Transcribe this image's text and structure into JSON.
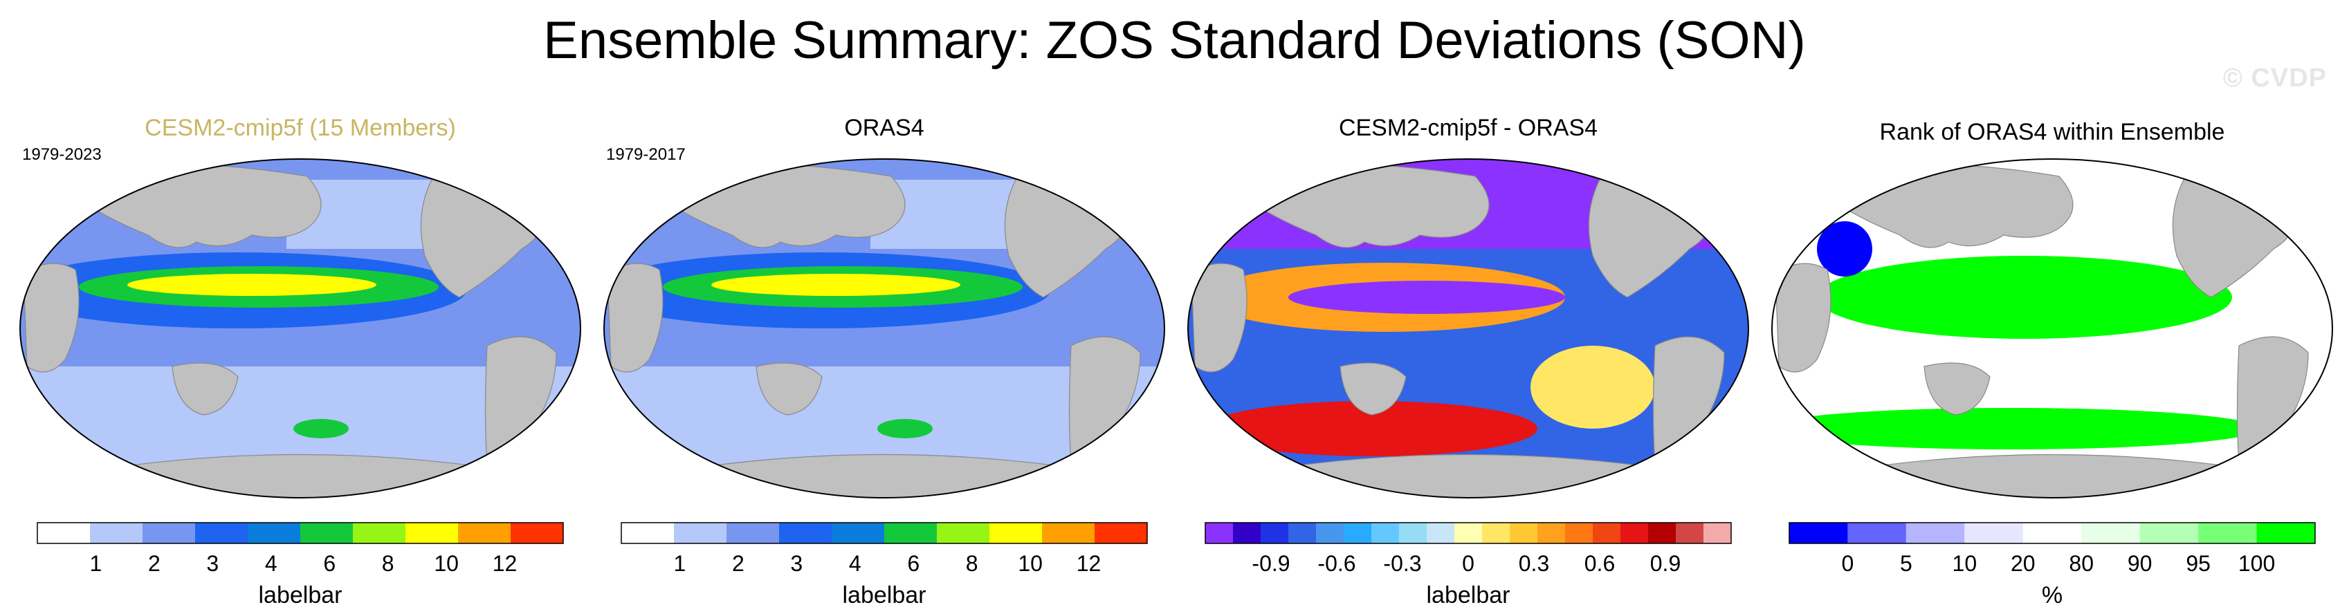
{
  "title": "Ensemble Summary: ZOS Standard Deviations (SON)",
  "watermark": "© CVDP",
  "panels": [
    {
      "title": "CESM2-cmip5f (15 Members)",
      "title_color": "#c8b560",
      "period": "1979-2023",
      "colorbar": {
        "label": "labelbar",
        "colors": [
          "#ffffff",
          "#b4c8fa",
          "#7896f0",
          "#1e64f0",
          "#0a7ddc",
          "#14c83c",
          "#96f514",
          "#ffff00",
          "#ffa000",
          "#ff3200"
        ],
        "ticks": [
          "1",
          "2",
          "3",
          "4",
          "6",
          "8",
          "10",
          "12"
        ]
      }
    },
    {
      "title": "ORAS4",
      "title_color": "#000000",
      "period": "1979-2017",
      "colorbar": {
        "label": "labelbar",
        "colors": [
          "#ffffff",
          "#b4c8fa",
          "#7896f0",
          "#1e64f0",
          "#0a7ddc",
          "#14c83c",
          "#96f514",
          "#ffff00",
          "#ffa000",
          "#ff3200"
        ],
        "ticks": [
          "1",
          "2",
          "3",
          "4",
          "6",
          "8",
          "10",
          "12"
        ]
      }
    },
    {
      "title": "CESM2-cmip5f - ORAS4",
      "title_color": "#000000",
      "period": "",
      "colorbar": {
        "label": "labelbar",
        "colors": [
          "#8c32ff",
          "#3200c8",
          "#1e32e6",
          "#3264e6",
          "#4696f0",
          "#28aaff",
          "#64c8ff",
          "#96dcf5",
          "#c8e6f5",
          "#ffffb4",
          "#ffe664",
          "#ffc832",
          "#ffa01e",
          "#ff7814",
          "#f04614",
          "#e61414",
          "#b40000",
          "#d24646",
          "#f5aaaa"
        ],
        "ticks": [
          "-0.9",
          "-0.6",
          "-0.3",
          "0",
          "0.3",
          "0.6",
          "0.9"
        ]
      }
    },
    {
      "title": "Rank of ORAS4 within Ensemble",
      "title_color": "#000000",
      "period": "",
      "colorbar": {
        "label": "%",
        "colors": [
          "#0000ff",
          "#6464ff",
          "#b4b4ff",
          "#e6e6ff",
          "#ffffff",
          "#e6ffe6",
          "#b4ffb4",
          "#78ff78",
          "#00ff00"
        ],
        "ticks": [
          "0",
          "5",
          "10",
          "20",
          "80",
          "90",
          "95",
          "100"
        ]
      }
    }
  ]
}
